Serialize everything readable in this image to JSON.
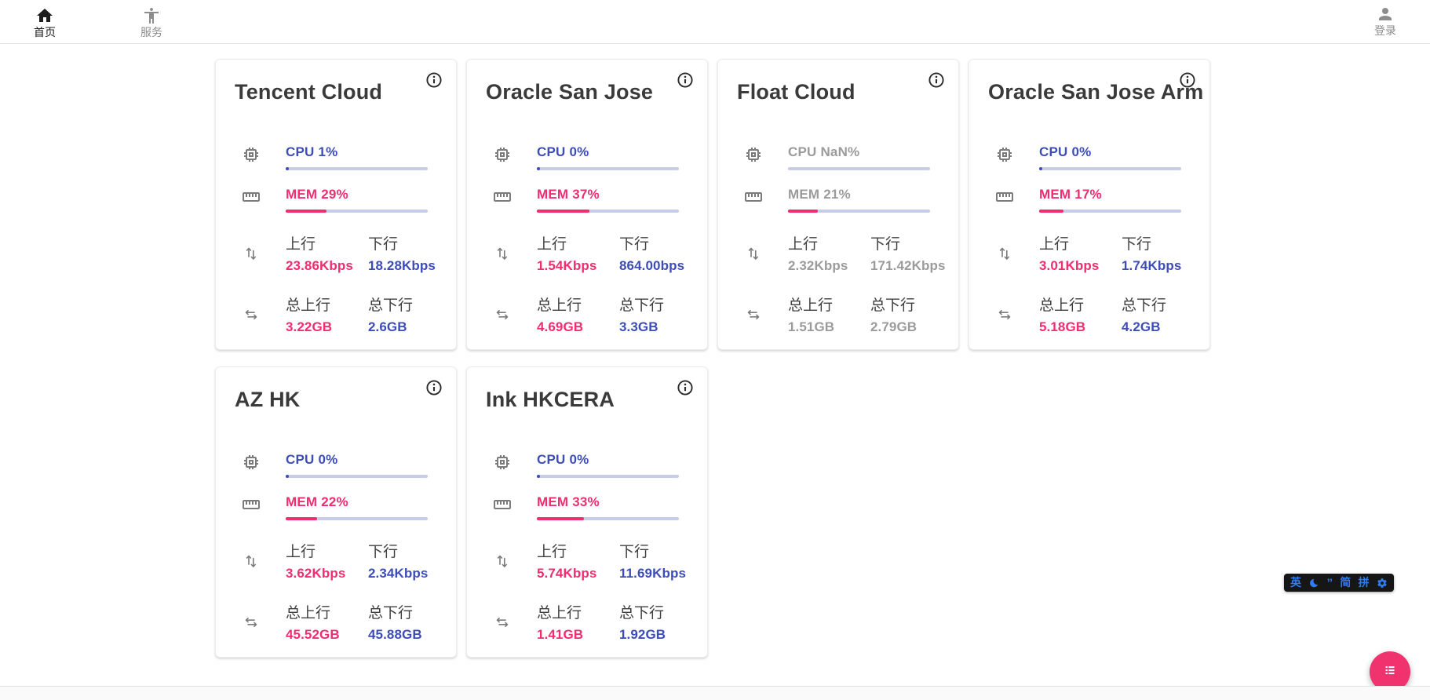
{
  "navbar": {
    "home": {
      "label": "首页"
    },
    "services": {
      "label": "服务"
    },
    "login": {
      "label": "登录"
    }
  },
  "labels": {
    "cpu": "CPU",
    "mem": "MEM",
    "upload": "上行",
    "download": "下行",
    "total_upload": "总上行",
    "total_download": "总下行"
  },
  "servers": [
    {
      "name": "Tencent Cloud",
      "cpu": "1%",
      "cpu_pct": 1,
      "mem": "29%",
      "mem_pct": 29,
      "upload": "23.86Kbps",
      "download": "18.28Kbps",
      "total_upload": "3.22GB",
      "total_download": "2.6GB",
      "online": true
    },
    {
      "name": "Oracle San Jose",
      "cpu": "0%",
      "cpu_pct": 0,
      "mem": "37%",
      "mem_pct": 37,
      "upload": "1.54Kbps",
      "download": "864.00bps",
      "total_upload": "4.69GB",
      "total_download": "3.3GB",
      "online": true
    },
    {
      "name": "Float Cloud",
      "cpu": "NaN%",
      "cpu_pct": null,
      "mem": "21%",
      "mem_pct": 21,
      "upload": "2.32Kbps",
      "download": "171.42Kbps",
      "total_upload": "1.51GB",
      "total_download": "2.79GB",
      "online": false
    },
    {
      "name": "Oracle San Jose Arm",
      "cpu": "0%",
      "cpu_pct": 0,
      "mem": "17%",
      "mem_pct": 17,
      "upload": "3.01Kbps",
      "download": "1.74Kbps",
      "total_upload": "5.18GB",
      "total_download": "4.2GB",
      "online": true
    },
    {
      "name": "AZ HK",
      "cpu": "0%",
      "cpu_pct": 0,
      "mem": "22%",
      "mem_pct": 22,
      "upload": "3.62Kbps",
      "download": "2.34Kbps",
      "total_upload": "45.52GB",
      "total_download": "45.88GB",
      "online": true
    },
    {
      "name": "Ink HKCERA",
      "cpu": "0%",
      "cpu_pct": 0,
      "mem": "33%",
      "mem_pct": 33,
      "upload": "5.74Kbps",
      "download": "11.69Kbps",
      "total_upload": "1.41GB",
      "total_download": "1.92GB",
      "online": true
    }
  ],
  "ime_bar": {
    "lang": "英",
    "moon_icon": "moon-icon",
    "punctuation": "’’",
    "simplified": "简",
    "pinyin": "拼",
    "settings_icon": "gear-icon"
  },
  "colors": {
    "accent_blue": "#3d4db7",
    "accent_pink": "#ee2e6e",
    "bar_track": "#c7cceb",
    "offline_gray": "#9b9b9b",
    "icon_gray": "#7b7b7b",
    "fab_pink": "#f0336e",
    "ime_blue": "#2f7cf6"
  }
}
